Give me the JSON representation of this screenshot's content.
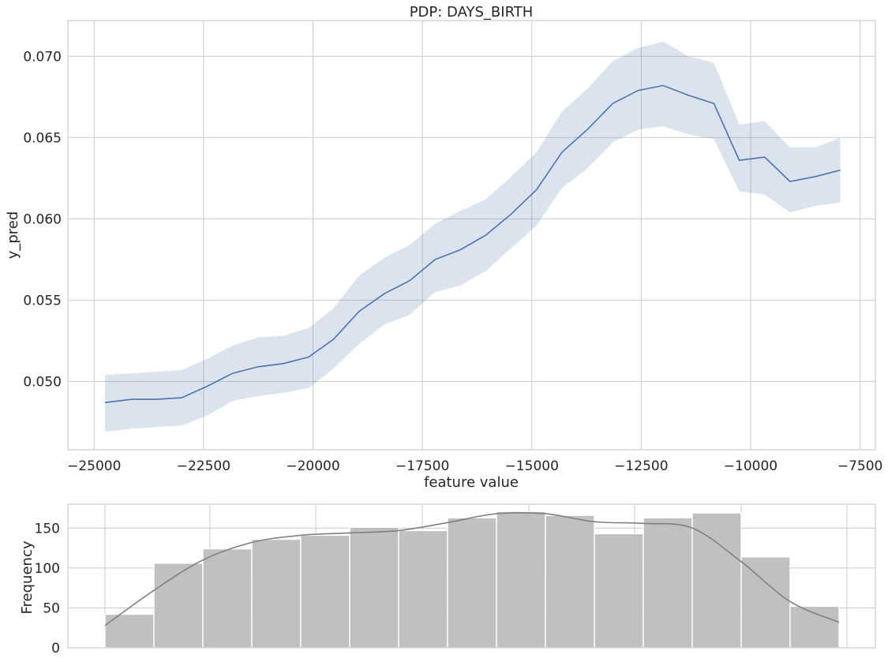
{
  "chart_data": [
    {
      "type": "line",
      "title": "PDP: DAYS_BIRTH",
      "xlabel": "feature value",
      "ylabel": "y_pred",
      "xlim": [
        -25600,
        -7150
      ],
      "ylim": [
        0.0458,
        0.0722
      ],
      "xticks": [
        -25000,
        -22500,
        -20000,
        -17500,
        -15000,
        -12500,
        -10000,
        -7500
      ],
      "xtick_labels": [
        "−25000",
        "−22500",
        "−20000",
        "−17500",
        "−15000",
        "−12500",
        "−10000",
        "−7500"
      ],
      "yticks": [
        0.05,
        0.055,
        0.06,
        0.065,
        0.07
      ],
      "ytick_labels": [
        "0.050",
        "0.055",
        "0.060",
        "0.065",
        "0.070"
      ],
      "grid": true,
      "line_color": "#4c72b0",
      "band_color": "#4c72b0",
      "series": [
        {
          "x": [
            -24750,
            -24150,
            -23580,
            -23000,
            -22420,
            -21840,
            -21260,
            -20680,
            -20100,
            -19530,
            -18950,
            -18370,
            -17790,
            -17210,
            -16630,
            -16050,
            -15470,
            -14890,
            -14310,
            -13730,
            -13150,
            -12570,
            -12000,
            -11420,
            -10840,
            -10260,
            -9680,
            -9100,
            -8520,
            -7950
          ],
          "y": [
            0.0487,
            0.0489,
            0.0489,
            0.049,
            0.0497,
            0.0505,
            0.0509,
            0.0511,
            0.0515,
            0.0526,
            0.0543,
            0.0554,
            0.0562,
            0.0575,
            0.0581,
            0.059,
            0.0603,
            0.0618,
            0.0641,
            0.0655,
            0.0671,
            0.0679,
            0.0682,
            0.0676,
            0.0671,
            0.0636,
            0.0638,
            0.0623,
            0.0626,
            0.063
          ],
          "y_lower": [
            0.0469,
            0.0471,
            0.0472,
            0.0473,
            0.0479,
            0.0488,
            0.0491,
            0.0493,
            0.0496,
            0.0508,
            0.0523,
            0.0535,
            0.0541,
            0.0555,
            0.0559,
            0.0568,
            0.0582,
            0.0596,
            0.0619,
            0.0631,
            0.0647,
            0.0655,
            0.0657,
            0.0652,
            0.0649,
            0.0617,
            0.0615,
            0.0604,
            0.0608,
            0.061
          ],
          "y_upper": [
            0.0504,
            0.0505,
            0.0506,
            0.0507,
            0.0514,
            0.0522,
            0.0527,
            0.0528,
            0.0533,
            0.0545,
            0.0565,
            0.0576,
            0.0584,
            0.0597,
            0.0605,
            0.0612,
            0.0626,
            0.0641,
            0.0666,
            0.068,
            0.0697,
            0.0705,
            0.0709,
            0.07,
            0.0696,
            0.0658,
            0.066,
            0.0644,
            0.0644,
            0.065
          ]
        }
      ]
    },
    {
      "type": "bar",
      "ylabel": "Frequency",
      "ylim": [
        0,
        180
      ],
      "yticks": [
        0,
        50,
        100,
        150
      ],
      "ytick_labels": [
        "0",
        "50",
        "100",
        "150"
      ],
      "grid": true,
      "bar_color": "#bdbdbd",
      "kde_color": "#808080",
      "values": [
        42,
        106,
        124,
        136,
        141,
        151,
        147,
        163,
        171,
        166,
        143,
        163,
        169,
        114,
        52
      ],
      "kde": [
        28,
        72,
        110,
        132,
        141,
        144,
        147,
        157,
        168,
        168,
        158,
        156,
        150,
        108,
        58,
        32
      ]
    }
  ]
}
